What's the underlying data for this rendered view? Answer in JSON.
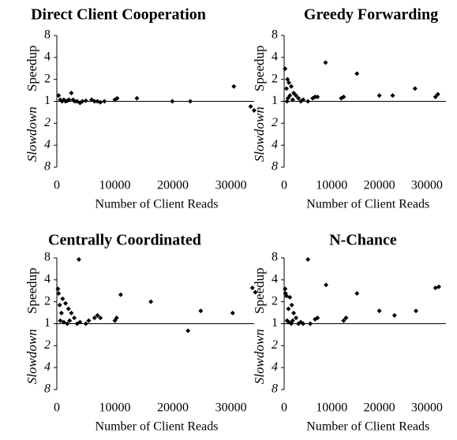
{
  "chart_data": [
    {
      "type": "scatter",
      "title": "Direct Client Cooperation",
      "color": "#000000",
      "log_y": true,
      "x": [
        300,
        600,
        900,
        1200,
        1500,
        1800,
        2100,
        2500,
        2800,
        3100,
        3500,
        4000,
        4400,
        5000,
        6000,
        6500,
        7000,
        7500,
        8200,
        10000,
        10400,
        13800,
        19900,
        23000,
        30500,
        33400,
        34000
      ],
      "values": [
        1.2,
        1.05,
        1,
        1.05,
        1,
        1.02,
        1.05,
        1.3,
        1.05,
        1,
        1,
        0.95,
        1,
        1.02,
        1.05,
        1,
        1,
        0.97,
        1,
        1.05,
        1.1,
        1.1,
        1,
        1,
        1.6,
        0.85,
        0.75
      ],
      "xlim": [
        0,
        34000
      ],
      "xticks": [
        0,
        10000,
        20000,
        30000
      ],
      "ylim": [
        0.125,
        8
      ],
      "yticks": [
        8,
        4,
        2,
        1,
        {
          "value": 0.5,
          "label": "2"
        },
        {
          "value": 0.25,
          "label": "4"
        },
        {
          "value": 0.125,
          "label": "8"
        }
      ],
      "hline": 1,
      "xlabel": "Number of Client Reads",
      "ylabel_speedup": "Speedup",
      "ylabel_slowdown": "Slowdown"
    },
    {
      "type": "scatter",
      "title": "Greedy Forwarding",
      "color": "#000000",
      "log_y": true,
      "x": [
        200,
        500,
        700,
        1000,
        1500,
        2000,
        2500,
        800,
        1200,
        600,
        1800,
        3000,
        3500,
        4000,
        5000,
        6000,
        6500,
        7000,
        8700,
        12000,
        12500,
        15300,
        20000,
        22800,
        27500,
        31800,
        32300
      ],
      "values": [
        2.8,
        1.5,
        2,
        1.8,
        1.6,
        1.3,
        1.2,
        1.1,
        1.2,
        1,
        1.05,
        1.1,
        1,
        1.05,
        1,
        1.1,
        1.15,
        1.15,
        3.4,
        1.1,
        1.15,
        2.4,
        1.2,
        1.2,
        1.5,
        1.15,
        1.25
      ],
      "xlim": [
        0,
        34000
      ],
      "xticks": [
        0,
        10000,
        20000,
        30000
      ],
      "ylim": [
        0.125,
        8
      ],
      "yticks": [
        8,
        4,
        2,
        1,
        {
          "value": 0.5,
          "label": "2"
        },
        {
          "value": 0.25,
          "label": "4"
        },
        {
          "value": 0.125,
          "label": "8"
        }
      ],
      "hline": 1,
      "xlabel": "Number of Client Reads",
      "ylabel_speedup": "Speedup",
      "ylabel_slowdown": "Slowdown"
    },
    {
      "type": "scatter",
      "title": "Centrally Coordinated",
      "color": "#000000",
      "log_y": true,
      "x": [
        200,
        300,
        500,
        800,
        1000,
        1500,
        2000,
        2500,
        3000,
        600,
        1200,
        1800,
        2200,
        3500,
        4000,
        3800,
        5000,
        5500,
        6500,
        7000,
        7500,
        11000,
        10300,
        10000,
        16200,
        24800,
        22600,
        30300,
        33700,
        34200
      ],
      "values": [
        3,
        2.6,
        1.8,
        1.4,
        2.2,
        1.9,
        1.6,
        1.4,
        1.2,
        1.1,
        1.05,
        1,
        1.1,
        1,
        1.05,
        7.6,
        1,
        1.1,
        1.2,
        1.3,
        1.2,
        2.5,
        1.2,
        1.1,
        2,
        1.5,
        0.8,
        1.4,
        3.1,
        2.7
      ],
      "xlim": [
        0,
        34000
      ],
      "xticks": [
        0,
        10000,
        20000,
        30000
      ],
      "ylim": [
        0.125,
        8
      ],
      "yticks": [
        8,
        4,
        2,
        1,
        {
          "value": 0.5,
          "label": "2"
        },
        {
          "value": 0.25,
          "label": "4"
        },
        {
          "value": 0.125,
          "label": "8"
        }
      ],
      "hline": 1,
      "xlabel": "Number of Client Reads",
      "ylabel_speedup": "Speedup",
      "ylabel_slowdown": "Slowdown"
    },
    {
      "type": "scatter",
      "title": "N-Chance",
      "color": "#000000",
      "log_y": true,
      "x": [
        200,
        300,
        500,
        900,
        1200,
        1600,
        2000,
        2500,
        600,
        1000,
        1500,
        1800,
        3000,
        3500,
        4000,
        5000,
        5500,
        6500,
        7000,
        8800,
        12500,
        13000,
        15300,
        20000,
        23200,
        27700,
        31800,
        32500
      ],
      "values": [
        3,
        2.6,
        2.4,
        1.6,
        2.3,
        1.8,
        1.4,
        1.2,
        1.1,
        1.05,
        1,
        1.1,
        1,
        1.05,
        1,
        7.6,
        1,
        1.15,
        1.2,
        3.4,
        1.1,
        1.2,
        2.6,
        1.5,
        1.3,
        1.5,
        3.1,
        3.2
      ],
      "xlim": [
        0,
        34000
      ],
      "xticks": [
        0,
        10000,
        20000,
        30000
      ],
      "ylim": [
        0.125,
        8
      ],
      "yticks": [
        8,
        4,
        2,
        1,
        {
          "value": 0.5,
          "label": "2"
        },
        {
          "value": 0.25,
          "label": "4"
        },
        {
          "value": 0.125,
          "label": "8"
        }
      ],
      "hline": 1,
      "xlabel": "Number of Client Reads",
      "ylabel_speedup": "Speedup",
      "ylabel_slowdown": "Slowdown"
    }
  ]
}
